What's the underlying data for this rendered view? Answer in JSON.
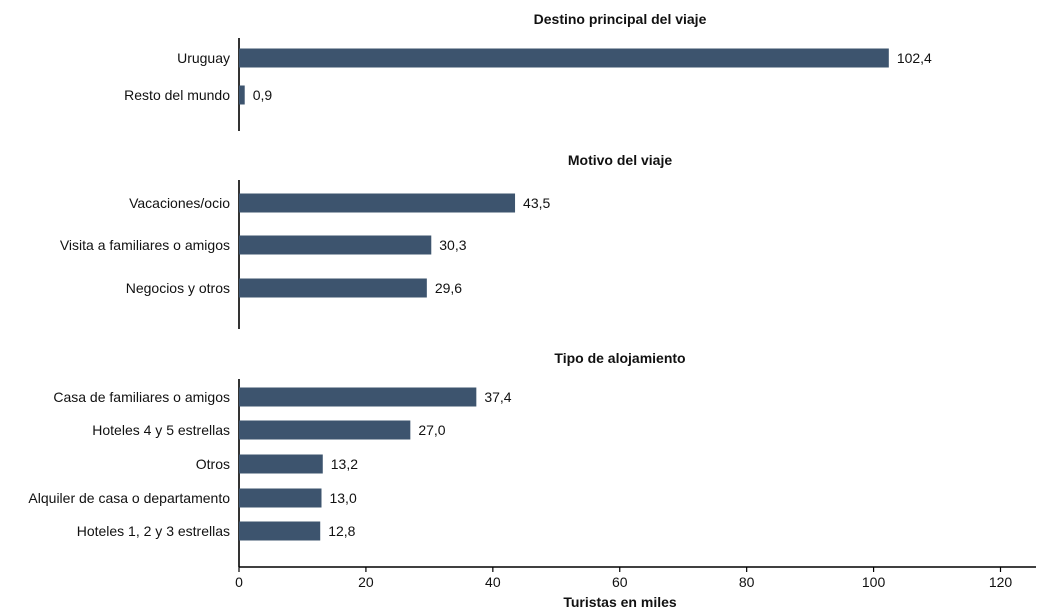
{
  "chart_data": {
    "type": "bar",
    "orientation": "horizontal",
    "xlabel": "Turistas en miles",
    "xlim": [
      0,
      120
    ],
    "xticks": [
      0,
      20,
      40,
      60,
      80,
      100,
      120
    ],
    "grid": false,
    "bar_color": "#3d546e",
    "panels": [
      {
        "title": "Destino principal del viaje",
        "categories": [
          "Uruguay",
          "Resto del mundo"
        ],
        "values": [
          102.4,
          0.9
        ],
        "labels": [
          "102,4",
          "0,9"
        ]
      },
      {
        "title": "Motivo del viaje",
        "categories": [
          "Vacaciones/ocio",
          "Visita a familiares o amigos",
          "Negocios y otros"
        ],
        "values": [
          43.5,
          30.3,
          29.6
        ],
        "labels": [
          "43,5",
          "30,3",
          "29,6"
        ]
      },
      {
        "title": "Tipo de alojamiento",
        "categories": [
          "Casa de familiares o amigos",
          "Hoteles 4 y 5 estrellas",
          "Otros",
          "Alquiler de casa o departamento",
          "Hoteles 1, 2 y 3 estrellas"
        ],
        "values": [
          37.4,
          27.0,
          13.2,
          13.0,
          12.8
        ],
        "labels": [
          "37,4",
          "27,0",
          "13,2",
          "13,0",
          "12,8"
        ]
      }
    ]
  }
}
